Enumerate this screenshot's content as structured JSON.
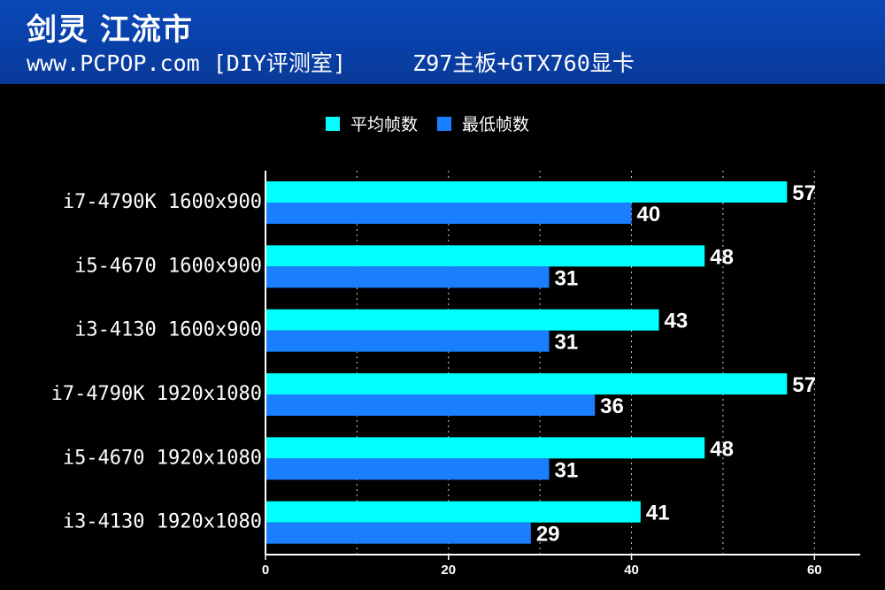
{
  "header": {
    "title_line1": "剑灵 江流市",
    "title_line2": "www.PCPOP.com [DIY评测室]     Z97主板+GTX760显卡"
  },
  "colors": {
    "header_bg": "#0a43b0",
    "avg_bar": "#00ffff",
    "min_bar": "#1a7fff",
    "background": "#000000"
  },
  "chart_data": {
    "type": "bar",
    "orientation": "horizontal",
    "categories": [
      "i7-4790K 1600x900",
      "i5-4670 1600x900",
      "i3-4130 1600x900",
      "i7-4790K 1920x1080",
      "i5-4670 1920x1080",
      "i3-4130 1920x1080"
    ],
    "series": [
      {
        "name": "平均帧数",
        "color": "#00ffff",
        "values": [
          57,
          48,
          43,
          57,
          48,
          41
        ]
      },
      {
        "name": "最低帧数",
        "color": "#1a7fff",
        "values": [
          40,
          31,
          31,
          36,
          31,
          29
        ]
      }
    ],
    "xlim": [
      0,
      65
    ],
    "xticks": [
      0,
      20,
      40,
      60
    ],
    "xlabel": "",
    "ylabel": "",
    "legend_position": "top-center",
    "grid": "vertical-dashed"
  }
}
